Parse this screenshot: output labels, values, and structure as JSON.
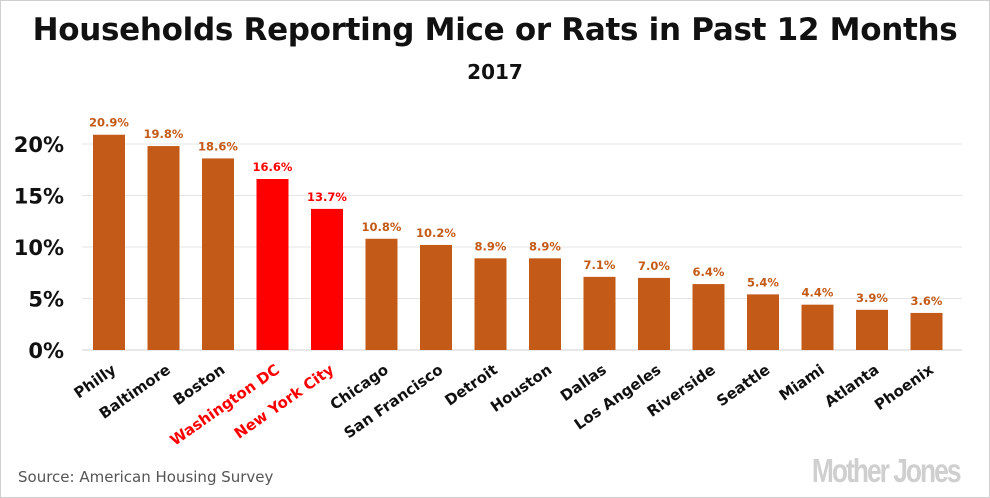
{
  "chart_data": {
    "type": "bar",
    "title": "Households Reporting Mice or Rats in Past 12 Months",
    "subtitle": "2017",
    "categories": [
      "Philly",
      "Baltimore",
      "Boston",
      "Washington DC",
      "New York City",
      "Chicago",
      "San Francisco",
      "Detroit",
      "Houston",
      "Dallas",
      "Los Angeles",
      "Riverside",
      "Seattle",
      "Miami",
      "Atlanta",
      "Phoenix"
    ],
    "values": [
      20.9,
      19.8,
      18.6,
      16.6,
      13.7,
      10.8,
      10.2,
      8.9,
      8.9,
      7.1,
      7.0,
      6.4,
      5.4,
      4.4,
      3.9,
      3.6
    ],
    "data_labels": [
      "20.9%",
      "19.8%",
      "18.6%",
      "16.6%",
      "13.7%",
      "10.8%",
      "10.2%",
      "8.9%",
      "8.9%",
      "7.1%",
      "7.0%",
      "6.4%",
      "5.4%",
      "4.4%",
      "3.9%",
      "3.6%"
    ],
    "highlighted": [
      "Washington DC",
      "New York City"
    ],
    "ylim": [
      0,
      22
    ],
    "yticks": [
      0,
      5,
      10,
      15,
      20
    ],
    "ytick_labels": [
      "0%",
      "5%",
      "10%",
      "15%",
      "20%"
    ],
    "xlabel": "",
    "ylabel": "",
    "grid": true,
    "colors": {
      "default": "#c45a17",
      "highlight": "#ff0000",
      "grid": "#e6e6e6"
    }
  },
  "source": "Source: American Housing Survey",
  "logo": "Mother Jones"
}
